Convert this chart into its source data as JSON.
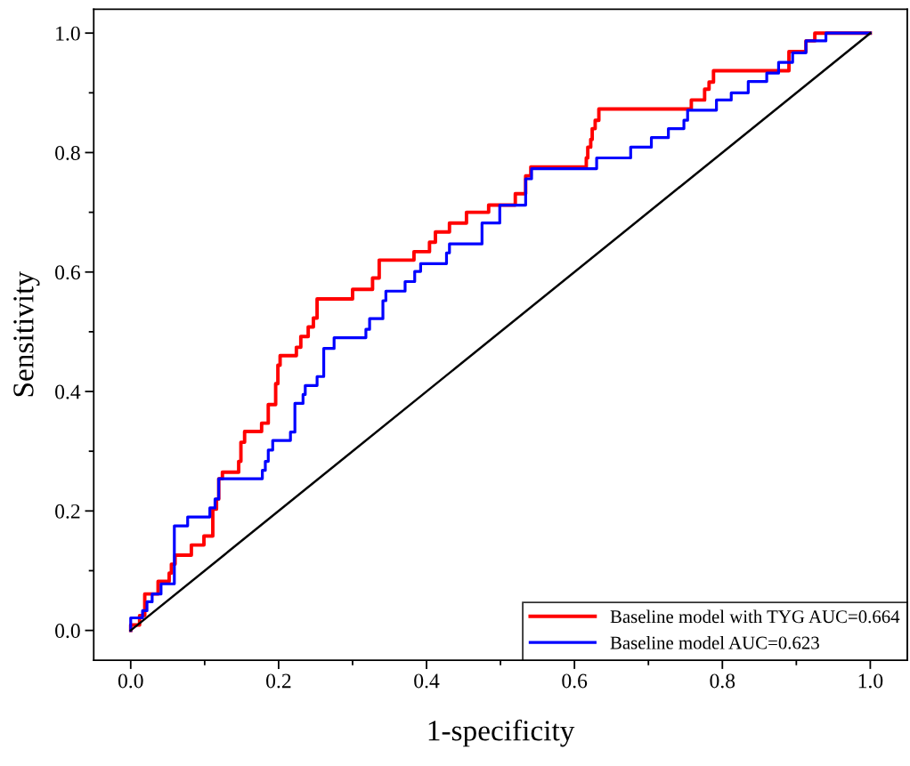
{
  "chart_data": {
    "type": "line",
    "xlabel": "1-specificity",
    "ylabel": "Sensitivity",
    "xlim": [
      -0.05,
      1.05
    ],
    "ylim": [
      -0.05,
      1.04
    ],
    "xticks": [
      {
        "value": 0,
        "label": "0.0"
      },
      {
        "value": 0.2,
        "label": "0.2"
      },
      {
        "value": 0.4,
        "label": "0.4"
      },
      {
        "value": 0.6,
        "label": "0.6"
      },
      {
        "value": 0.8,
        "label": "0.8"
      },
      {
        "value": 1,
        "label": "1.0"
      }
    ],
    "yticks": [
      {
        "value": 0,
        "label": "0.0"
      },
      {
        "value": 0.2,
        "label": "0.2"
      },
      {
        "value": 0.4,
        "label": "0.4"
      },
      {
        "value": 0.6,
        "label": "0.6"
      },
      {
        "value": 0.8,
        "label": "0.8"
      },
      {
        "value": 1,
        "label": "1.0"
      }
    ],
    "grid": false,
    "legend": "bottom right",
    "marker": "none",
    "line_style": "solid",
    "series": [
      {
        "name": "Baseline model with TYG AUC=0.664",
        "color": "#ff0000",
        "x": [
          0,
          0,
          0.012,
          0.012,
          0.019,
          0.019,
          0.037,
          0.037,
          0.052,
          0.052,
          0.055,
          0.055,
          0.06,
          0.06,
          0.082,
          0.082,
          0.099,
          0.099,
          0.111,
          0.111,
          0.116,
          0.116,
          0.119,
          0.119,
          0.124,
          0.124,
          0.146,
          0.146,
          0.149,
          0.149,
          0.154,
          0.154,
          0.177,
          0.177,
          0.186,
          0.186,
          0.196,
          0.196,
          0.199,
          0.199,
          0.202,
          0.202,
          0.224,
          0.224,
          0.23,
          0.23,
          0.24,
          0.24,
          0.247,
          0.247,
          0.252,
          0.252,
          0.3,
          0.3,
          0.327,
          0.327,
          0.336,
          0.336,
          0.383,
          0.383,
          0.404,
          0.404,
          0.412,
          0.412,
          0.431,
          0.431,
          0.454,
          0.454,
          0.484,
          0.484,
          0.52,
          0.52,
          0.534,
          0.534,
          0.541,
          0.541,
          0.616,
          0.616,
          0.618,
          0.618,
          0.622,
          0.622,
          0.624,
          0.624,
          0.628,
          0.628,
          0.633,
          0.633,
          0.758,
          0.758,
          0.776,
          0.776,
          0.782,
          0.782,
          0.788,
          0.788,
          0.89,
          0.89,
          0.913,
          0.913,
          0.925,
          0.925,
          1.0
        ],
        "values": [
          0,
          0.009,
          0.009,
          0.025,
          0.025,
          0.061,
          0.061,
          0.082,
          0.082,
          0.096,
          0.096,
          0.111,
          0.111,
          0.126,
          0.126,
          0.143,
          0.143,
          0.158,
          0.158,
          0.203,
          0.203,
          0.22,
          0.22,
          0.254,
          0.254,
          0.265,
          0.265,
          0.283,
          0.283,
          0.315,
          0.315,
          0.333,
          0.333,
          0.347,
          0.347,
          0.378,
          0.378,
          0.413,
          0.413,
          0.444,
          0.444,
          0.46,
          0.46,
          0.474,
          0.474,
          0.492,
          0.492,
          0.508,
          0.508,
          0.523,
          0.523,
          0.555,
          0.555,
          0.571,
          0.571,
          0.59,
          0.59,
          0.62,
          0.62,
          0.634,
          0.634,
          0.65,
          0.65,
          0.667,
          0.667,
          0.682,
          0.682,
          0.7,
          0.7,
          0.712,
          0.712,
          0.731,
          0.731,
          0.761,
          0.761,
          0.776,
          0.776,
          0.791,
          0.791,
          0.809,
          0.809,
          0.822,
          0.822,
          0.84,
          0.84,
          0.854,
          0.854,
          0.873,
          0.873,
          0.888,
          0.888,
          0.906,
          0.906,
          0.918,
          0.918,
          0.937,
          0.937,
          0.969,
          0.969,
          0.987,
          0.987,
          1.0,
          1.0
        ]
      },
      {
        "name": "Baseline model AUC=0.623",
        "color": "#0000ff",
        "x": [
          0,
          0,
          0.016,
          0.016,
          0.022,
          0.022,
          0.029,
          0.029,
          0.041,
          0.041,
          0.059,
          0.059,
          0.077,
          0.077,
          0.107,
          0.107,
          0.114,
          0.114,
          0.119,
          0.119,
          0.178,
          0.178,
          0.182,
          0.182,
          0.186,
          0.186,
          0.192,
          0.192,
          0.216,
          0.216,
          0.222,
          0.222,
          0.233,
          0.233,
          0.236,
          0.236,
          0.252,
          0.252,
          0.261,
          0.261,
          0.275,
          0.275,
          0.318,
          0.318,
          0.323,
          0.323,
          0.341,
          0.341,
          0.345,
          0.345,
          0.371,
          0.371,
          0.384,
          0.384,
          0.392,
          0.392,
          0.427,
          0.427,
          0.431,
          0.431,
          0.475,
          0.475,
          0.499,
          0.499,
          0.534,
          0.534,
          0.542,
          0.542,
          0.63,
          0.63,
          0.676,
          0.676,
          0.704,
          0.704,
          0.727,
          0.727,
          0.748,
          0.748,
          0.753,
          0.753,
          0.792,
          0.792,
          0.812,
          0.812,
          0.835,
          0.835,
          0.86,
          0.86,
          0.876,
          0.876,
          0.895,
          0.895,
          0.913,
          0.913,
          0.94,
          0.94,
          1.0
        ],
        "values": [
          0,
          0.021,
          0.021,
          0.033,
          0.033,
          0.048,
          0.048,
          0.061,
          0.061,
          0.078,
          0.078,
          0.175,
          0.175,
          0.19,
          0.19,
          0.205,
          0.205,
          0.22,
          0.22,
          0.254,
          0.254,
          0.268,
          0.268,
          0.283,
          0.283,
          0.302,
          0.302,
          0.318,
          0.318,
          0.332,
          0.332,
          0.38,
          0.38,
          0.395,
          0.395,
          0.41,
          0.41,
          0.425,
          0.425,
          0.472,
          0.472,
          0.49,
          0.49,
          0.504,
          0.504,
          0.522,
          0.522,
          0.552,
          0.552,
          0.568,
          0.568,
          0.584,
          0.584,
          0.601,
          0.601,
          0.614,
          0.614,
          0.632,
          0.632,
          0.647,
          0.647,
          0.682,
          0.682,
          0.712,
          0.712,
          0.756,
          0.756,
          0.773,
          0.773,
          0.791,
          0.791,
          0.809,
          0.809,
          0.825,
          0.825,
          0.84,
          0.84,
          0.854,
          0.854,
          0.871,
          0.871,
          0.888,
          0.888,
          0.9,
          0.9,
          0.919,
          0.919,
          0.933,
          0.933,
          0.951,
          0.951,
          0.967,
          0.967,
          0.987,
          0.987,
          1.0,
          1.0
        ]
      },
      {
        "color": "#000000",
        "x": [
          0,
          1
        ],
        "values": [
          0,
          1
        ]
      }
    ]
  }
}
